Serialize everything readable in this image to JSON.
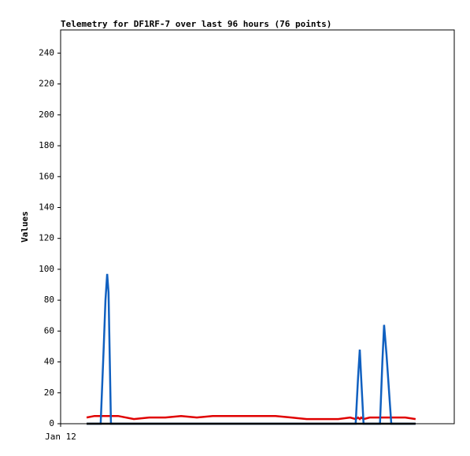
{
  "chart_data": {
    "type": "line",
    "title": "Telemetry for DF1RF-7 over last 96 hours (76 points)",
    "ylabel": "Values",
    "x": [
      7.6,
      9.9,
      11.7,
      12.6,
      13.1,
      13.6,
      14.0,
      14.7,
      16.8,
      21.4,
      25.9,
      30.6,
      35.2,
      39.8,
      44.4,
      48.9,
      53.6,
      58.2,
      62.8,
      67.4,
      71.9,
      76.6,
      81.1,
      84.6,
      86.2,
      86.9,
      87.4,
      87.8,
      88.5,
      90.3,
      92.2,
      93.3,
      94.0,
      94.5,
      95.2,
      96.6,
      98.4,
      100.7,
      103.7
    ],
    "series": [
      {
        "color": "#e00000",
        "values": [
          4,
          5,
          5,
          5,
          5,
          5,
          5,
          5,
          5,
          3,
          4,
          4,
          5,
          4,
          5,
          5,
          5,
          5,
          5,
          4,
          3,
          3,
          3,
          4,
          3,
          4,
          3,
          4,
          3,
          4,
          4,
          4,
          4,
          4,
          4,
          4,
          4,
          4,
          3
        ]
      },
      {
        "color": "#1060c0",
        "values": [
          0,
          0,
          0,
          50,
          80,
          97,
          85,
          0,
          0,
          0,
          0,
          0,
          0,
          0,
          0,
          0,
          0,
          0,
          0,
          0,
          0,
          0,
          0,
          0,
          0,
          30,
          48,
          30,
          0,
          0,
          0,
          0,
          40,
          64,
          45,
          0,
          0,
          0,
          0
        ]
      },
      {
        "color": "#000000",
        "values": [
          0,
          0,
          0,
          0,
          0,
          0,
          0,
          0,
          0,
          0,
          0,
          0,
          0,
          0,
          0,
          0,
          0,
          0,
          0,
          0,
          0,
          0,
          0,
          0,
          0,
          0,
          0,
          0,
          0,
          0,
          0,
          0,
          0,
          0,
          0,
          0,
          0,
          0,
          0
        ]
      }
    ],
    "xlim": [
      0,
      115
    ],
    "xticks": [
      {
        "value": 0,
        "label": "Jan 12"
      }
    ],
    "ylim": [
      0,
      255
    ],
    "yticks": [
      0,
      20,
      40,
      60,
      80,
      100,
      120,
      140,
      160,
      180,
      200,
      220,
      240
    ]
  }
}
